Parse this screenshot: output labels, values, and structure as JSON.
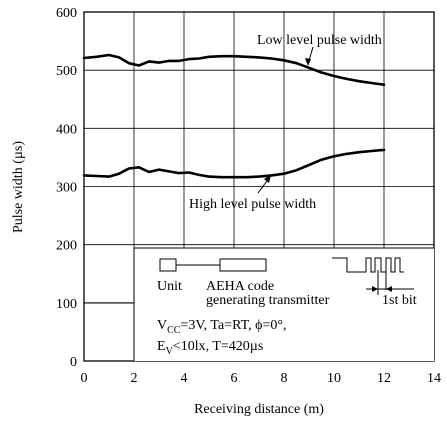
{
  "chart_data": {
    "type": "line",
    "xlabel": "Receiving distance (m)",
    "ylabel": "Pulse width (µs)",
    "xlim": [
      0,
      14
    ],
    "ylim": [
      0,
      600
    ],
    "xticks": [
      "0",
      "2",
      "4",
      "6",
      "8",
      "10",
      "12",
      "14"
    ],
    "yticks": [
      "0",
      "100",
      "200",
      "300",
      "400",
      "500",
      "600"
    ],
    "grid": true,
    "series": [
      {
        "name": "Low level pulse width",
        "x": [
          0,
          0.5,
          1,
          1.4,
          1.8,
          2.2,
          2.6,
          3,
          3.4,
          3.8,
          4.2,
          4.6,
          5,
          5.5,
          6,
          6.5,
          7,
          7.5,
          8,
          8.5,
          9,
          9.5,
          10,
          10.5,
          11,
          11.5,
          12
        ],
        "y": [
          521,
          523,
          526,
          522,
          512,
          508,
          515,
          513,
          516,
          516,
          519,
          520,
          523,
          524,
          524,
          523,
          522,
          520,
          517,
          512,
          504,
          496,
          490,
          485,
          481,
          478,
          475
        ]
      },
      {
        "name": "High level pulse width",
        "x": [
          0,
          0.5,
          1,
          1.4,
          1.8,
          2.2,
          2.6,
          3,
          3.4,
          3.8,
          4.2,
          4.6,
          5,
          5.5,
          6,
          6.5,
          7,
          7.5,
          8,
          8.5,
          9,
          9.5,
          10,
          10.5,
          11,
          11.5,
          12
        ],
        "y": [
          319,
          318,
          317,
          322,
          331,
          333,
          325,
          329,
          326,
          323,
          324,
          320,
          317,
          316,
          316,
          316,
          317,
          319,
          322,
          328,
          337,
          346,
          352,
          356,
          359,
          361,
          363
        ]
      }
    ],
    "annotations": {
      "low_label": "Low level pulse width",
      "high_label": "High level pulse width"
    },
    "conditions_box": {
      "unit_label": "Unit",
      "aeha_label_line1": "AEHA code",
      "aeha_label_line2": "generating transmitter",
      "first_bit_label": "1st bit",
      "cond_line1_a": "V",
      "cond_line1_sub": "CC",
      "cond_line1_b": "=3V, Ta=RT, ϕ=0°,",
      "cond_line2_a": "E",
      "cond_line2_sub": "V",
      "cond_line2_b": "<10lx, T=420µs"
    }
  }
}
